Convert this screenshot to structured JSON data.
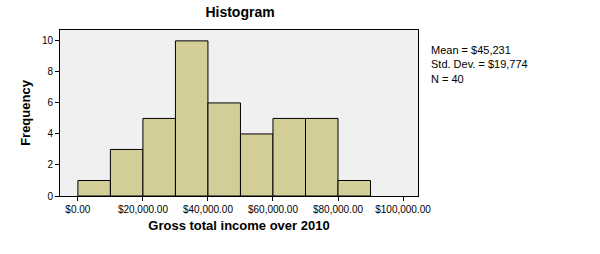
{
  "chart_data": {
    "type": "histogram",
    "title": "Histogram",
    "x_label": "Gross total income over 2010",
    "y_label": "Frequency",
    "bins": [
      0,
      10000,
      20000,
      30000,
      40000,
      50000,
      60000,
      70000,
      80000,
      90000
    ],
    "values": [
      1,
      3,
      5,
      10,
      6,
      4,
      5,
      5,
      1
    ],
    "color": "#d3ce97",
    "xlim": [
      -5500,
      104600
    ],
    "xticks": [
      {
        "value": 0,
        "label": "$0.00"
      },
      {
        "value": 20000,
        "label": "$20,000.00"
      },
      {
        "value": 40000,
        "label": "$40,000.00"
      },
      {
        "value": 60000,
        "label": "$60,000.00"
      },
      {
        "value": 80000,
        "label": "$80,000.00"
      },
      {
        "value": 100000,
        "label": "$100,000.00"
      }
    ],
    "ylim": [
      0,
      10.7
    ],
    "yticks": [
      0,
      2,
      4,
      6,
      8,
      10
    ],
    "grid": false,
    "annotations": [
      "Mean = $45,231",
      "Std. Dev. = $19,774",
      "N = 40"
    ]
  }
}
